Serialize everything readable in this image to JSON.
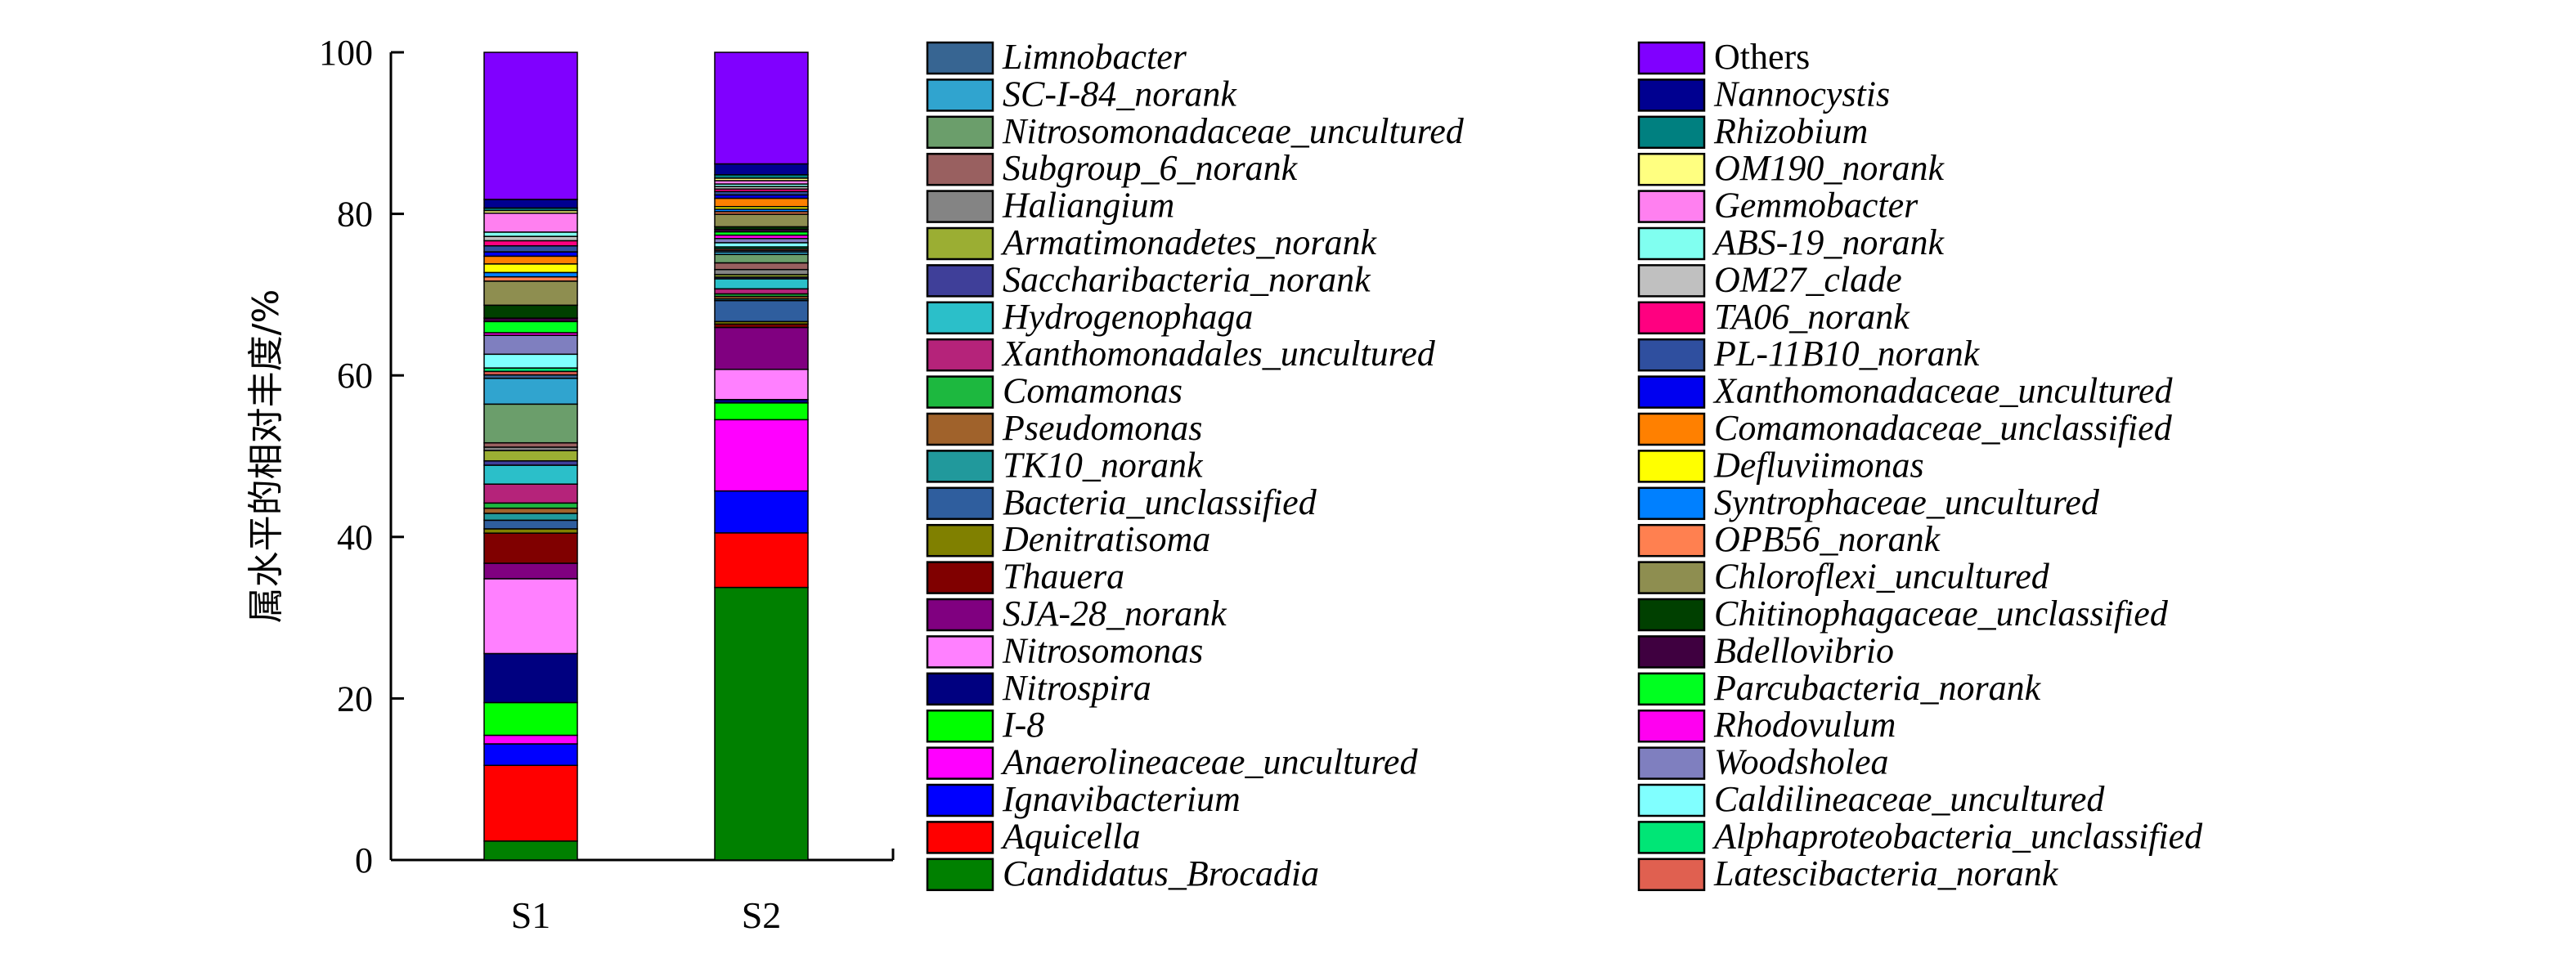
{
  "chart_data": {
    "type": "bar",
    "stacked": true,
    "ylabel": "属水平的相对丰度/%",
    "xlabel": "",
    "ylim": [
      0,
      100
    ],
    "yticks": [
      0,
      20,
      40,
      60,
      80,
      100
    ],
    "categories": [
      "S1",
      "S2"
    ],
    "legend_position": "right",
    "series": [
      {
        "name": "Candidatus_Brocadia",
        "color": "#008000",
        "values": [
          2.2,
          32.5
        ]
      },
      {
        "name": "Aquicella",
        "color": "#FF0000",
        "values": [
          8.8,
          6.5
        ]
      },
      {
        "name": "Ignavibacterium",
        "color": "#0000FF",
        "values": [
          2.5,
          5.0
        ]
      },
      {
        "name": "Anaerolineaceae_uncultured",
        "color": "#FF00FF",
        "values": [
          1.0,
          8.5
        ]
      },
      {
        "name": "I-8",
        "color": "#00FF00",
        "values": [
          3.8,
          2.0
        ]
      },
      {
        "name": "Nitrospira",
        "color": "#000080",
        "values": [
          5.7,
          0.4
        ]
      },
      {
        "name": "Nitrosomonas",
        "color": "#FF80FF",
        "values": [
          8.7,
          3.6
        ]
      },
      {
        "name": "SJA-28_norank",
        "color": "#800080",
        "values": [
          1.8,
          5.0
        ]
      },
      {
        "name": "Thauera",
        "color": "#800000",
        "values": [
          3.5,
          0.4
        ]
      },
      {
        "name": "Denitratisoma",
        "color": "#808000",
        "values": [
          0.5,
          0.3
        ]
      },
      {
        "name": "Bacteria_unclassified",
        "color": "#2F5E9E",
        "values": [
          1.0,
          2.5
        ]
      },
      {
        "name": "TK10_norank",
        "color": "#21999C",
        "values": [
          0.8,
          0.2
        ]
      },
      {
        "name": "Pseudomonas",
        "color": "#A0622B",
        "values": [
          0.6,
          0.3
        ]
      },
      {
        "name": "Comamonas",
        "color": "#1DB83F",
        "values": [
          0.6,
          0.3
        ]
      },
      {
        "name": "Xanthomonadales_uncultured",
        "color": "#B5237A",
        "values": [
          2.2,
          0.6
        ]
      },
      {
        "name": "Hydrogenophaga",
        "color": "#2BBFC9",
        "values": [
          2.2,
          1.2
        ]
      },
      {
        "name": "Saccharibacteria_norank",
        "color": "#3F3F99",
        "values": [
          0.5,
          0.2
        ]
      },
      {
        "name": "Armatimonadetes_norank",
        "color": "#9BAE33",
        "values": [
          1.2,
          0.3
        ]
      },
      {
        "name": "Haliangium",
        "color": "#848484",
        "values": [
          0.4,
          0.6
        ]
      },
      {
        "name": "Subgroup_6_norank",
        "color": "#996060",
        "values": [
          0.5,
          0.8
        ]
      },
      {
        "name": "Nitrosomonadaceae_uncultured",
        "color": "#6B9E6B",
        "values": [
          4.5,
          1.0
        ]
      },
      {
        "name": "SC-I-84_norank",
        "color": "#30A4CF",
        "values": [
          3.0,
          0.3
        ]
      },
      {
        "name": "Limnobacter",
        "color": "#376592",
        "values": [
          0.4,
          0.2
        ]
      },
      {
        "name": "Latescibacteria_norank",
        "color": "#E06050",
        "values": [
          0.4,
          0.2
        ]
      },
      {
        "name": "Alphaproteobacteria_unclassified",
        "color": "#00E676",
        "values": [
          0.4,
          0.2
        ]
      },
      {
        "name": "Caldilineaceae_uncultured",
        "color": "#80FFFF",
        "values": [
          1.6,
          0.5
        ]
      },
      {
        "name": "Woodsholea",
        "color": "#7F7FBF",
        "values": [
          2.2,
          0.5
        ]
      },
      {
        "name": "Rhodovulum",
        "color": "#FF00F0",
        "values": [
          0.3,
          0.4
        ]
      },
      {
        "name": "Parcubacteria_norank",
        "color": "#00FF20",
        "values": [
          1.3,
          0.4
        ]
      },
      {
        "name": "Bdellovibrio",
        "color": "#3F0040",
        "values": [
          0.4,
          0.3
        ]
      },
      {
        "name": "Chitinophagaceae_unclassified",
        "color": "#004000",
        "values": [
          1.5,
          0.3
        ]
      },
      {
        "name": "Chloroflexi_uncultured",
        "color": "#8E8E50",
        "values": [
          2.8,
          1.5
        ]
      },
      {
        "name": "OPB56_norank",
        "color": "#FF8050",
        "values": [
          0.5,
          0.3
        ]
      },
      {
        "name": "Syntrophaceae_uncultured",
        "color": "#0080FF",
        "values": [
          0.5,
          0.3
        ]
      },
      {
        "name": "Defluviimonas",
        "color": "#FFFF00",
        "values": [
          1.0,
          0.3
        ]
      },
      {
        "name": "Comamonadaceae_unclassified",
        "color": "#FF8000",
        "values": [
          0.9,
          1.0
        ]
      },
      {
        "name": "Xanthomonadaceae_uncultured",
        "color": "#0000F0",
        "values": [
          0.5,
          0.4
        ]
      },
      {
        "name": "PL-11B10_norank",
        "color": "#2F4F9F",
        "values": [
          0.7,
          0.4
        ]
      },
      {
        "name": "TA06_norank",
        "color": "#FF0080",
        "values": [
          0.6,
          0.3
        ]
      },
      {
        "name": "OM27_clade",
        "color": "#C0C0C0",
        "values": [
          0.5,
          0.3
        ]
      },
      {
        "name": "ABS-19_norank",
        "color": "#80FFF0",
        "values": [
          0.5,
          0.3
        ]
      },
      {
        "name": "Gemmobacter",
        "color": "#FF80F0",
        "values": [
          2.2,
          0.4
        ]
      },
      {
        "name": "OM190_norank",
        "color": "#FFFF80",
        "values": [
          0.3,
          0.3
        ]
      },
      {
        "name": "Rhizobium",
        "color": "#008080",
        "values": [
          0.3,
          0.4
        ]
      },
      {
        "name": "Nannocystis",
        "color": "#000090",
        "values": [
          1.0,
          1.3
        ]
      },
      {
        "name": "Others",
        "color": "#8000FF",
        "values": [
          17.1,
          13.3
        ]
      }
    ]
  }
}
